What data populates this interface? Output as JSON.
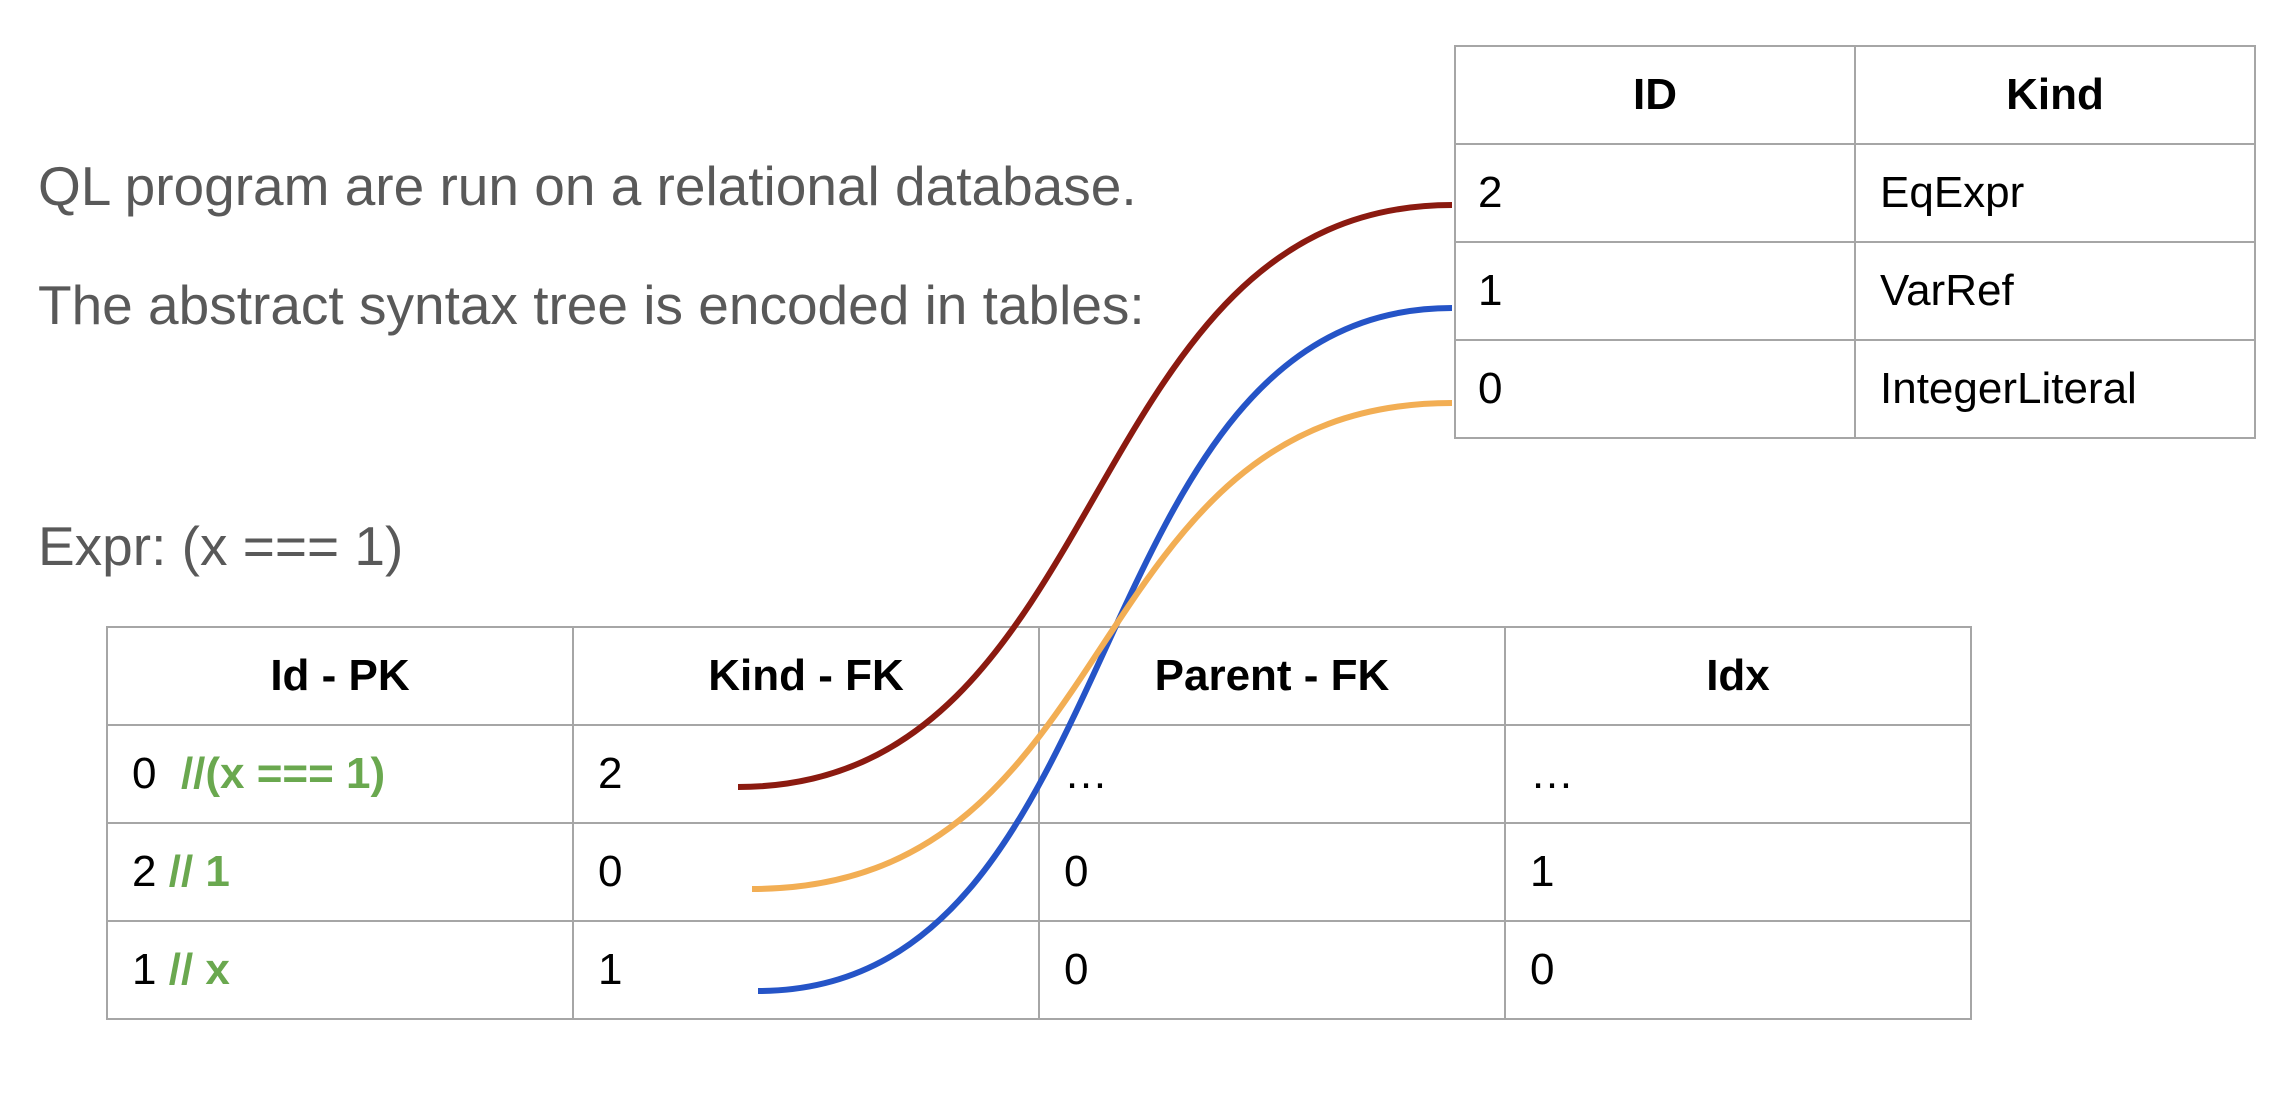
{
  "text": {
    "line1": "QL program are run on a relational database.",
    "line2": "The abstract syntax tree is encoded in tables:",
    "line3": "Expr: (x === 1)"
  },
  "kind_table": {
    "headers": [
      "ID",
      "Kind"
    ],
    "rows": [
      {
        "id": "2",
        "kind": "EqExpr"
      },
      {
        "id": "1",
        "kind": "VarRef"
      },
      {
        "id": "0",
        "kind": "IntegerLiteral"
      }
    ]
  },
  "expr_table": {
    "headers": [
      "Id - PK",
      "Kind - FK",
      "Parent - FK",
      "Idx"
    ],
    "rows": [
      {
        "id": "0",
        "comment": "//(x === 1)",
        "kind": "2",
        "parent": "…",
        "idx": "…"
      },
      {
        "id": "2",
        "comment": "// 1",
        "kind": "0",
        "parent": "0",
        "idx": "1"
      },
      {
        "id": "1",
        "comment": "// x",
        "kind": "1",
        "parent": "0",
        "idx": "0"
      }
    ]
  },
  "links": [
    {
      "from_row": 0,
      "to_row": 0,
      "color": "#8b1a10"
    },
    {
      "from_row": 2,
      "to_row": 1,
      "color": "#2554c7"
    },
    {
      "from_row": 1,
      "to_row": 2,
      "color": "#f2ae54"
    }
  ]
}
